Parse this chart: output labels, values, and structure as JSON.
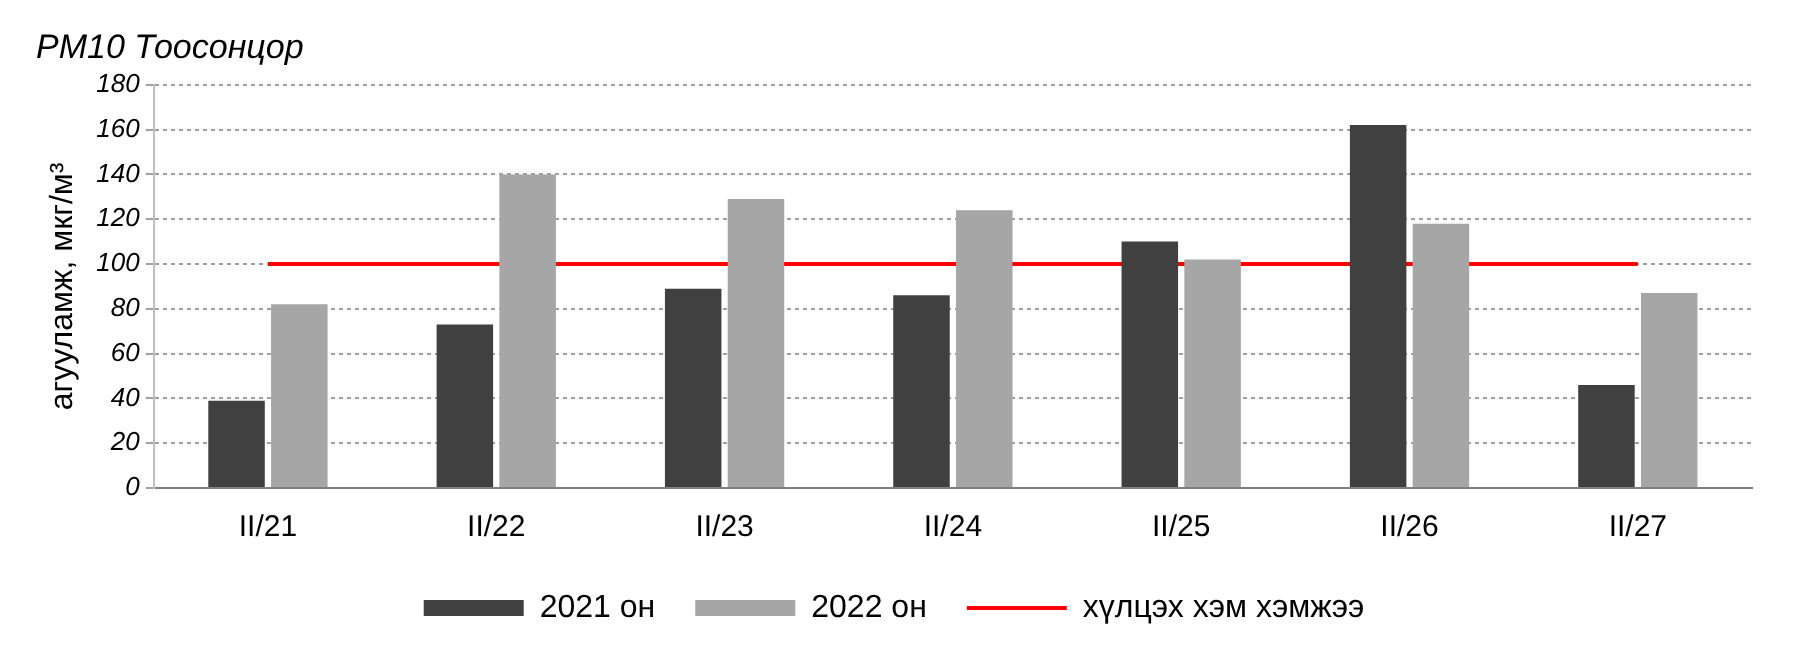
{
  "chart_data": {
    "type": "bar",
    "title": "PM10 Тоосонцор",
    "ylabel": "агууламж, мкг/м³",
    "categories": [
      "II/21",
      "II/22",
      "II/23",
      "II/24",
      "II/25",
      "II/26",
      "II/27"
    ],
    "series": [
      {
        "name": "2021 он",
        "color": "#404040",
        "values": [
          39,
          73,
          89,
          86,
          110,
          162,
          46
        ]
      },
      {
        "name": "2022 он",
        "color": "#a6a6a6",
        "values": [
          82,
          140,
          129,
          124,
          102,
          118,
          87
        ]
      },
      {
        "name": "хүлцэх хэм хэмжээ",
        "type": "line",
        "color": "#ff0000",
        "marker": "none",
        "values": [
          100,
          100,
          100,
          100,
          100,
          100,
          100
        ]
      }
    ],
    "ylim": [
      0,
      180
    ],
    "yticks": [
      0,
      20,
      40,
      60,
      80,
      100,
      120,
      140,
      160,
      180
    ],
    "grid": "y",
    "legend": "bottom"
  }
}
